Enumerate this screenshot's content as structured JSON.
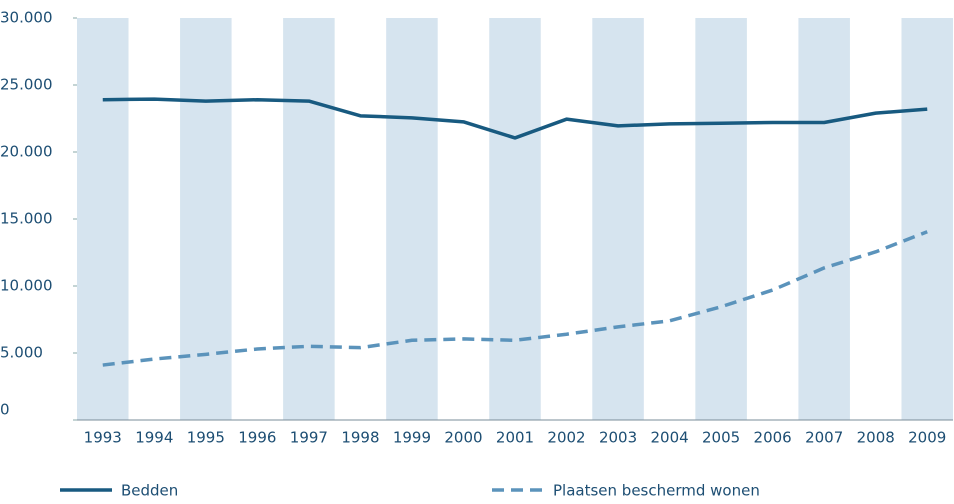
{
  "chart_data": {
    "type": "line",
    "categories": [
      "1993",
      "1994",
      "1995",
      "1996",
      "1997",
      "1998",
      "1999",
      "2000",
      "2001",
      "2002",
      "2003",
      "2004",
      "2005",
      "2006",
      "2007",
      "2008",
      "2009"
    ],
    "series": [
      {
        "name": "Bedden",
        "color": "#185a80",
        "dash": false,
        "values": [
          23900,
          23950,
          23800,
          23900,
          23800,
          22700,
          22550,
          22250,
          21050,
          22450,
          21950,
          22100,
          22150,
          22200,
          22200,
          22900,
          23200
        ]
      },
      {
        "name": "Plaatsen beschermd wonen",
        "color": "#5b93bb",
        "dash": true,
        "values": [
          4100,
          4550,
          4900,
          5300,
          5500,
          5400,
          5950,
          6050,
          5950,
          6400,
          6950,
          7400,
          8450,
          9700,
          11350,
          12550,
          14050
        ]
      }
    ],
    "ylim": [
      0,
      30000
    ],
    "yticks": [
      0,
      {
        "value": 5000,
        "label": "5.000"
      },
      {
        "value": 10000,
        "label": "10.000"
      },
      {
        "value": 15000,
        "label": "15.000"
      },
      {
        "value": 20000,
        "label": "20.000"
      },
      {
        "value": 25000,
        "label": "25.000"
      },
      {
        "value": 30000,
        "label": "30.000"
      }
    ],
    "band_color": "#d6e4ef",
    "legend": "bottom"
  }
}
